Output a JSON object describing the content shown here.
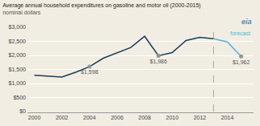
{
  "chart_data": {
    "type": "line",
    "title": "Average annual household expenditures on gasoline and motor oil (2000-2015)",
    "subtitle": "nominal dollars",
    "logo": {
      "text": "eia",
      "color": "#4a90c4"
    },
    "background": "#f2ede3",
    "grid": true,
    "grid_color": "#ffffff",
    "series": [
      {
        "type": "line",
        "line_style": "solid",
        "color": "#1c3d5a",
        "x": [
          2000,
          2001,
          2002,
          2003,
          2004,
          2005,
          2006,
          2007,
          2008,
          2009,
          2010,
          2011,
          2012,
          2013
        ],
        "values": [
          1290,
          1265,
          1230,
          1400,
          1598,
          1900,
          2100,
          2280,
          2680,
          1986,
          2100,
          2530,
          2640,
          2590
        ]
      },
      {
        "type": "line",
        "line_style": "solid",
        "color": "#4db8d4",
        "x": [
          2013,
          2014,
          2015
        ],
        "values": [
          2590,
          2480,
          1962
        ]
      },
      {
        "type": "scatter",
        "marker": "circle",
        "color": "#8a9a8a",
        "x": [
          2004,
          2009,
          2015
        ],
        "values": [
          1598,
          1986,
          1962
        ],
        "data_labels": true,
        "value_labels": [
          "$1,598",
          "$1,986",
          "$1,962"
        ]
      }
    ],
    "annotations": [
      {
        "text": "forecast",
        "x": 2014.1,
        "y": 2620,
        "color": "#4db8d4"
      }
    ],
    "vline": {
      "x": 2013,
      "color": "#aaaaaa",
      "line_style": "dash"
    },
    "xlim": [
      1999.5,
      2015.9
    ],
    "xticks": [
      2000,
      2002,
      2004,
      2006,
      2008,
      2010,
      2012,
      2014
    ],
    "ylim": [
      0,
      3000
    ],
    "yticks": [
      {
        "value": 0,
        "label": "$0"
      },
      {
        "value": 500,
        "label": "$500"
      },
      {
        "value": 1000,
        "label": "$1,000"
      },
      {
        "value": 1500,
        "label": "$1,500"
      },
      {
        "value": 2000,
        "label": "$2,000"
      },
      {
        "value": 2500,
        "label": "$2,500"
      },
      {
        "value": 3000,
        "label": "$3,000"
      }
    ]
  }
}
